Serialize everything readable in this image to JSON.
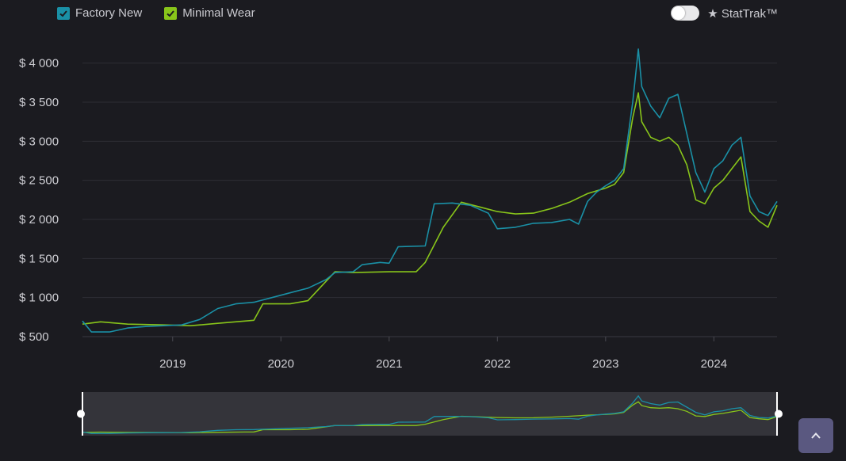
{
  "legend": {
    "items": [
      {
        "label": "Factory New",
        "color": "#1a90a6"
      },
      {
        "label": "Minimal Wear",
        "color": "#88c51a"
      }
    ]
  },
  "toggle": {
    "label": "★ StatTrak™",
    "on": false
  },
  "chart_data": {
    "type": "line",
    "x_ticks": [
      "2019",
      "2020",
      "2021",
      "2022",
      "2023",
      "2024"
    ],
    "y_ticks": [
      "$ 500",
      "$ 1 000",
      "$ 1 500",
      "$ 2 000",
      "$ 2 500",
      "$ 3 000",
      "$ 3 500",
      "$ 4 000"
    ],
    "x_range": [
      "2018-03",
      "2024-08"
    ],
    "y_range": [
      500,
      4250
    ],
    "grid": true,
    "legend_position": "top-left",
    "series": [
      {
        "name": "Factory New",
        "color": "#1a90a6",
        "points": [
          [
            "2018-03",
            700
          ],
          [
            "2018-04",
            560
          ],
          [
            "2018-06",
            560
          ],
          [
            "2018-08",
            610
          ],
          [
            "2018-10",
            630
          ],
          [
            "2018-12",
            640
          ],
          [
            "2019-02",
            650
          ],
          [
            "2019-04",
            720
          ],
          [
            "2019-06",
            860
          ],
          [
            "2019-08",
            920
          ],
          [
            "2019-10",
            940
          ],
          [
            "2019-12",
            1000
          ],
          [
            "2020-02",
            1060
          ],
          [
            "2020-04",
            1120
          ],
          [
            "2020-06",
            1230
          ],
          [
            "2020-07",
            1320
          ],
          [
            "2020-09",
            1330
          ],
          [
            "2020-10",
            1420
          ],
          [
            "2020-12",
            1450
          ],
          [
            "2021-01",
            1440
          ],
          [
            "2021-02",
            1650
          ],
          [
            "2021-05",
            1660
          ],
          [
            "2021-06",
            2200
          ],
          [
            "2021-08",
            2210
          ],
          [
            "2021-10",
            2180
          ],
          [
            "2021-12",
            2080
          ],
          [
            "2022-01",
            1880
          ],
          [
            "2022-03",
            1900
          ],
          [
            "2022-05",
            1950
          ],
          [
            "2022-07",
            1960
          ],
          [
            "2022-09",
            2000
          ],
          [
            "2022-10",
            1940
          ],
          [
            "2022-11",
            2230
          ],
          [
            "2022-12",
            2350
          ],
          [
            "2023-01",
            2430
          ],
          [
            "2023-02",
            2500
          ],
          [
            "2023-03",
            2650
          ],
          [
            "2023-04",
            3500
          ],
          [
            "2023-04-20",
            4180
          ],
          [
            "2023-05",
            3700
          ],
          [
            "2023-06",
            3450
          ],
          [
            "2023-07",
            3300
          ],
          [
            "2023-08",
            3550
          ],
          [
            "2023-09",
            3600
          ],
          [
            "2023-10",
            3100
          ],
          [
            "2023-11",
            2600
          ],
          [
            "2023-12",
            2350
          ],
          [
            "2024-01",
            2650
          ],
          [
            "2024-02",
            2750
          ],
          [
            "2024-03",
            2950
          ],
          [
            "2024-04",
            3050
          ],
          [
            "2024-05",
            2300
          ],
          [
            "2024-06",
            2100
          ],
          [
            "2024-07",
            2050
          ],
          [
            "2024-08",
            2230
          ]
        ]
      },
      {
        "name": "Minimal Wear",
        "color": "#88c51a",
        "points": [
          [
            "2018-03",
            660
          ],
          [
            "2018-05",
            690
          ],
          [
            "2018-08",
            660
          ],
          [
            "2018-12",
            650
          ],
          [
            "2019-03",
            640
          ],
          [
            "2019-06",
            670
          ],
          [
            "2019-09",
            700
          ],
          [
            "2019-10",
            710
          ],
          [
            "2019-11",
            920
          ],
          [
            "2020-02",
            920
          ],
          [
            "2020-04",
            960
          ],
          [
            "2020-07",
            1330
          ],
          [
            "2020-09",
            1320
          ],
          [
            "2021-01",
            1330
          ],
          [
            "2021-04",
            1330
          ],
          [
            "2021-05",
            1450
          ],
          [
            "2021-07",
            1900
          ],
          [
            "2021-09",
            2220
          ],
          [
            "2021-11",
            2160
          ],
          [
            "2022-01",
            2100
          ],
          [
            "2022-03",
            2070
          ],
          [
            "2022-05",
            2080
          ],
          [
            "2022-07",
            2140
          ],
          [
            "2022-09",
            2220
          ],
          [
            "2022-11",
            2330
          ],
          [
            "2023-01",
            2400
          ],
          [
            "2023-02",
            2450
          ],
          [
            "2023-03",
            2600
          ],
          [
            "2023-04",
            3300
          ],
          [
            "2023-04-20",
            3620
          ],
          [
            "2023-05",
            3250
          ],
          [
            "2023-06",
            3050
          ],
          [
            "2023-07",
            3000
          ],
          [
            "2023-08",
            3050
          ],
          [
            "2023-09",
            2950
          ],
          [
            "2023-10",
            2700
          ],
          [
            "2023-11",
            2250
          ],
          [
            "2023-12",
            2200
          ],
          [
            "2024-01",
            2400
          ],
          [
            "2024-02",
            2500
          ],
          [
            "2024-03",
            2650
          ],
          [
            "2024-04",
            2800
          ],
          [
            "2024-05",
            2100
          ],
          [
            "2024-06",
            1980
          ],
          [
            "2024-07",
            1900
          ],
          [
            "2024-08",
            2180
          ]
        ]
      }
    ]
  }
}
